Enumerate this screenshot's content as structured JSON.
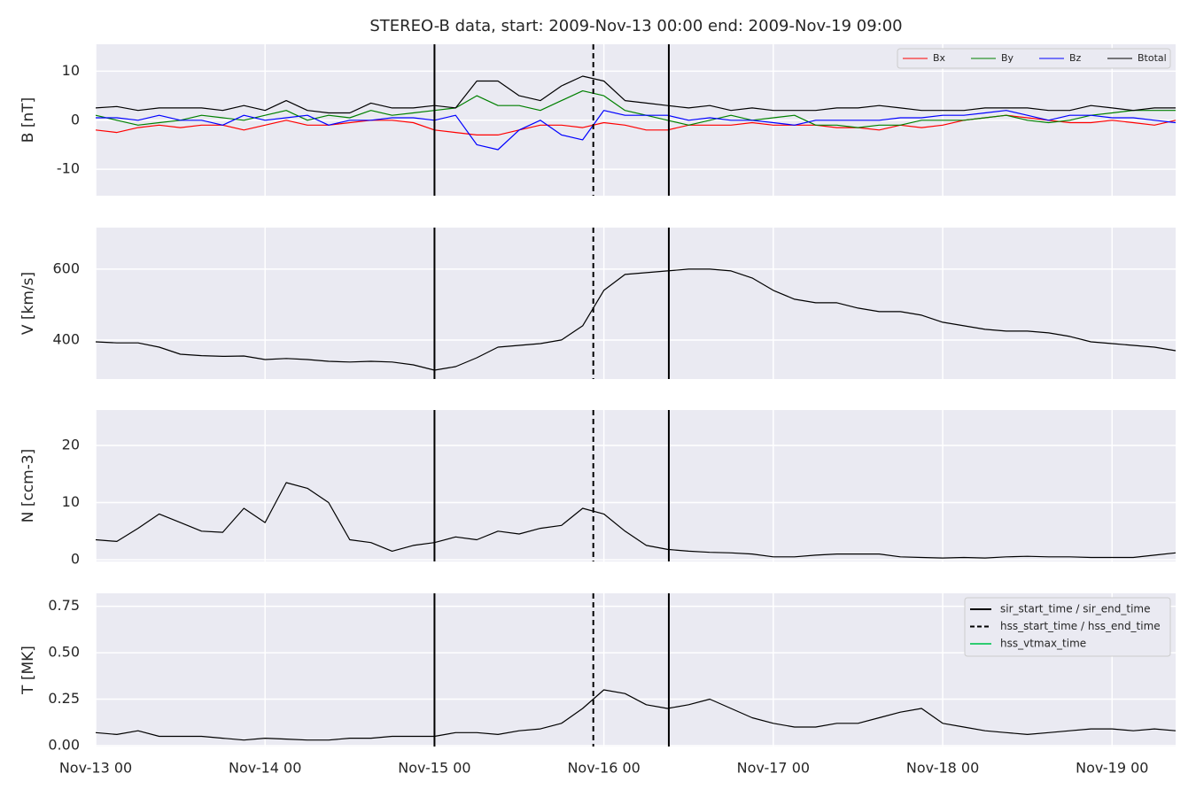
{
  "chart_data": {
    "type": "line",
    "title": "STEREO-B data, start: 2009-Nov-13 00:00  end: 2009-Nov-19 09:00",
    "x": [
      0,
      3,
      6,
      9,
      12,
      15,
      18,
      21,
      24,
      27,
      30,
      33,
      36,
      39,
      42,
      45,
      48,
      51,
      54,
      57,
      60,
      63,
      66,
      69,
      72,
      75,
      78,
      81,
      84,
      87,
      90,
      93,
      96,
      99,
      102,
      105,
      108,
      111,
      114,
      117,
      120,
      123,
      126,
      129,
      132,
      135,
      138,
      141,
      144,
      147,
      150,
      153
    ],
    "xlim": [
      0,
      153
    ],
    "xticks": [
      {
        "value": 0,
        "label": "Nov-13 00"
      },
      {
        "value": 24,
        "label": "Nov-14 00"
      },
      {
        "value": 48,
        "label": "Nov-15 00"
      },
      {
        "value": 72,
        "label": "Nov-16 00"
      },
      {
        "value": 96,
        "label": "Nov-17 00"
      },
      {
        "value": 120,
        "label": "Nov-18 00"
      },
      {
        "value": 144,
        "label": "Nov-19 00"
      }
    ],
    "grid": true,
    "event_legend": "upper right",
    "event_lines": [
      {
        "name": "sir_start_time / sir_end_time",
        "color": "#000000",
        "dashed": false,
        "x": [
          48,
          81.2
        ]
      },
      {
        "name": "hss_start_time / hss_end_time",
        "color": "#000000",
        "dashed": true,
        "x": [
          70.5
        ]
      },
      {
        "name": "hss_vtmax_time",
        "color": "#2ecc71",
        "dashed": false,
        "x": []
      }
    ],
    "panels": [
      {
        "ylabel": "B [nT]",
        "ylim": [
          -15.4,
          15.5
        ],
        "yticks": [
          -10,
          0,
          10
        ],
        "legend": "upper right",
        "series": [
          {
            "name": "Bx",
            "color": "#ff0000",
            "values": [
              -2,
              -2.5,
              -1.5,
              -1,
              -1.5,
              -1,
              -1,
              -2,
              -1,
              0,
              -1,
              -1,
              -0.5,
              0,
              0,
              -0.5,
              -2,
              -2.5,
              -3,
              -3,
              -2,
              -1,
              -1,
              -1.5,
              -0.5,
              -1,
              -2,
              -2,
              -1,
              -1,
              -1,
              -0.5,
              -1,
              -1,
              -1,
              -1.5,
              -1.5,
              -2,
              -1,
              -1.5,
              -1,
              0,
              0.5,
              1,
              0.5,
              0,
              -0.5,
              -0.5,
              0,
              -0.5,
              -1,
              0
            ]
          },
          {
            "name": "By",
            "color": "#008000",
            "values": [
              1,
              0,
              -1,
              -0.5,
              0,
              1,
              0.5,
              0,
              1,
              2,
              0,
              1,
              0.5,
              2,
              1,
              1.5,
              2,
              2.5,
              5,
              3,
              3,
              2,
              4,
              6,
              5,
              2,
              1,
              0,
              -1,
              0,
              1,
              0,
              0.5,
              1,
              -1,
              -1,
              -1.5,
              -1,
              -1,
              0,
              0,
              0,
              0.5,
              1,
              0,
              -0.5,
              0,
              1,
              1.5,
              2,
              2,
              2
            ]
          },
          {
            "name": "Bz",
            "color": "#0000ff",
            "values": [
              0.5,
              0.5,
              0,
              1,
              0,
              0,
              -1,
              1,
              0,
              0.5,
              1,
              -1,
              0,
              0,
              0.5,
              0.5,
              0,
              1,
              -5,
              -6,
              -2,
              0,
              -3,
              -4,
              2,
              1,
              1,
              1,
              0,
              0.5,
              0,
              0,
              -0.5,
              -1,
              0,
              0,
              0,
              0,
              0.5,
              0.5,
              1,
              1,
              1.5,
              2,
              1,
              0,
              1,
              1,
              0.5,
              0.5,
              0,
              -0.5
            ]
          },
          {
            "name": "Btotal",
            "color": "#000000",
            "values": [
              2.5,
              2.8,
              2,
              2.5,
              2.5,
              2.5,
              2,
              3,
              2,
              4,
              2,
              1.5,
              1.5,
              3.5,
              2.5,
              2.5,
              3,
              2.5,
              8,
              8,
              5,
              4,
              7,
              9,
              8,
              4,
              3.5,
              3,
              2.5,
              3,
              2,
              2.5,
              2,
              2,
              2,
              2.5,
              2.5,
              3,
              2.5,
              2,
              2,
              2,
              2.5,
              2.5,
              2.5,
              2,
              2,
              3,
              2.5,
              2,
              2.5,
              2.5
            ]
          }
        ]
      },
      {
        "ylabel": "V [km/s]",
        "ylim": [
          290,
          717
        ],
        "yticks": [
          400,
          600
        ],
        "series": [
          {
            "color": "#000000",
            "values": [
              395,
              392,
              392,
              380,
              360,
              356,
              354,
              355,
              345,
              348,
              345,
              340,
              338,
              340,
              338,
              330,
              315,
              325,
              350,
              380,
              385,
              390,
              400,
              440,
              540,
              585,
              590,
              595,
              600,
              600,
              595,
              575,
              540,
              515,
              505,
              505,
              490,
              480,
              480,
              470,
              450,
              440,
              430,
              425,
              425,
              420,
              410,
              395,
              390,
              385,
              380,
              370
            ]
          }
        ]
      },
      {
        "ylabel": "N [ccm-3]",
        "ylim": [
          -0.3,
          26.2
        ],
        "yticks": [
          0,
          10,
          20
        ],
        "series": [
          {
            "color": "#000000",
            "values": [
              3.5,
              3.2,
              5.5,
              8,
              6.5,
              5,
              4.8,
              9,
              6.5,
              13.5,
              12.5,
              10,
              3.5,
              3,
              1.5,
              2.5,
              3,
              4,
              3.5,
              5,
              4.5,
              5.5,
              6,
              9,
              8,
              5,
              2.5,
              1.8,
              1.5,
              1.3,
              1.2,
              1,
              0.5,
              0.5,
              0.8,
              1,
              1,
              1,
              0.5,
              0.4,
              0.3,
              0.4,
              0.3,
              0.5,
              0.6,
              0.5,
              0.5,
              0.4,
              0.4,
              0.4,
              0.8,
              1.2
            ]
          }
        ]
      },
      {
        "ylabel": "T [MK]",
        "ylim": [
          -0.005,
          0.82
        ],
        "yticks": [
          {
            "value": 0,
            "label": "0.00"
          },
          {
            "value": 0.25,
            "label": "0.25"
          },
          {
            "value": 0.5,
            "label": "0.50"
          },
          {
            "value": 0.75,
            "label": "0.75"
          }
        ],
        "series": [
          {
            "color": "#000000",
            "values": [
              0.07,
              0.06,
              0.08,
              0.05,
              0.05,
              0.05,
              0.04,
              0.03,
              0.04,
              0.035,
              0.03,
              0.03,
              0.04,
              0.04,
              0.05,
              0.05,
              0.05,
              0.07,
              0.07,
              0.06,
              0.08,
              0.09,
              0.12,
              0.2,
              0.3,
              0.28,
              0.22,
              0.2,
              0.22,
              0.25,
              0.2,
              0.15,
              0.12,
              0.1,
              0.1,
              0.12,
              0.12,
              0.15,
              0.18,
              0.2,
              0.12,
              0.1,
              0.08,
              0.07,
              0.06,
              0.07,
              0.08,
              0.09,
              0.09,
              0.08,
              0.09,
              0.08
            ]
          }
        ]
      }
    ]
  }
}
